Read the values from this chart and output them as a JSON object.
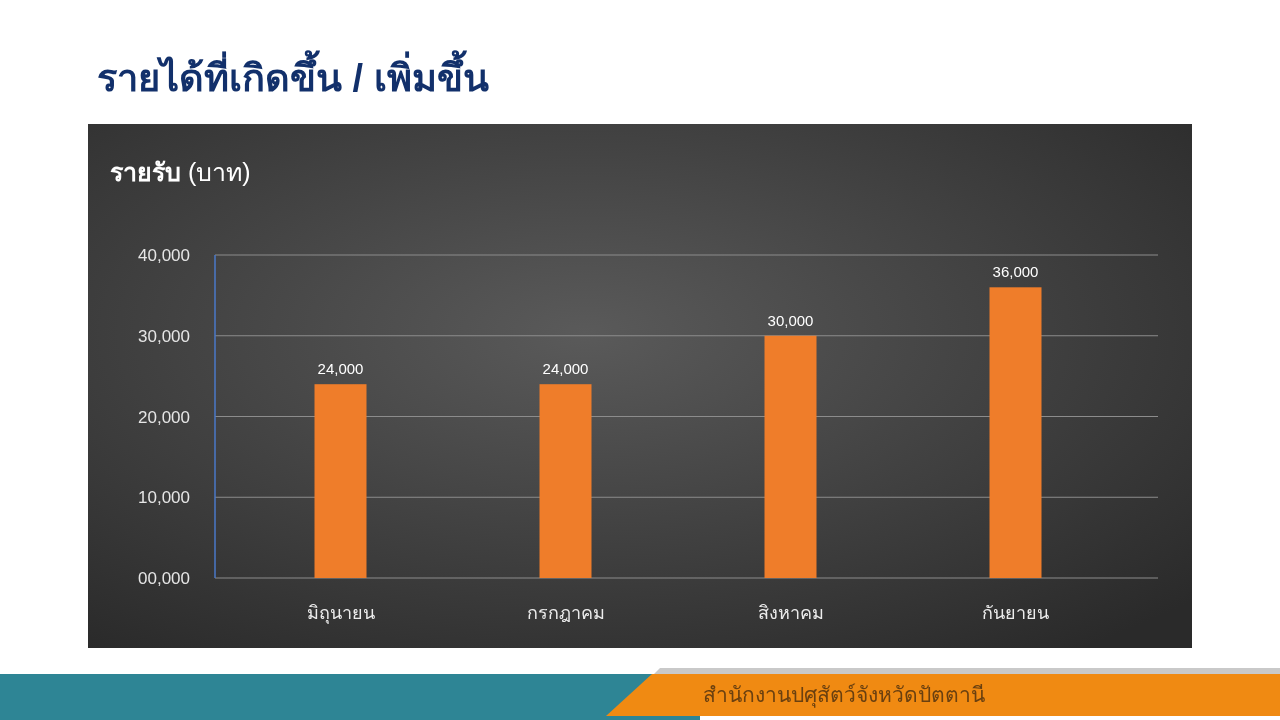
{
  "chart_data": {
    "type": "bar",
    "title": "รายได้ที่เกิดขึ้น / เพิ่มขึ้น",
    "ylabel": "รายรับ (บาท)",
    "categories": [
      "มิถุนายน",
      "กรกฎาคม",
      "สิงหาคม",
      "กันยายน"
    ],
    "values": [
      24000,
      24000,
      30000,
      36000
    ],
    "value_labels": [
      "24,000",
      "24,000",
      "30,000",
      "36,000"
    ],
    "color": "#ef7d2a",
    "ylim": [
      0,
      40000
    ],
    "yticks": [
      {
        "value": 0,
        "label": "00,000"
      },
      {
        "value": 10000,
        "label": "10,000"
      },
      {
        "value": 20000,
        "label": "20,000"
      },
      {
        "value": 30000,
        "label": "30,000"
      },
      {
        "value": 40000,
        "label": "40,000"
      }
    ],
    "grid": "y",
    "annotations": [
      "สำนักงานปศุสัตว์จังหวัดปัตตานี"
    ]
  }
}
